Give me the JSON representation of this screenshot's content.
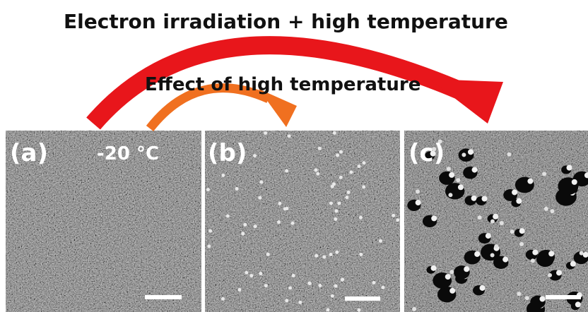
{
  "header": {
    "title": "Electron irradiation + high temperature",
    "subtitle": "Effect of high temperature"
  },
  "panels": [
    {
      "label": "(a)",
      "annotation": "-20 °C"
    },
    {
      "label": "(b)"
    },
    {
      "label": "(c)"
    }
  ]
}
